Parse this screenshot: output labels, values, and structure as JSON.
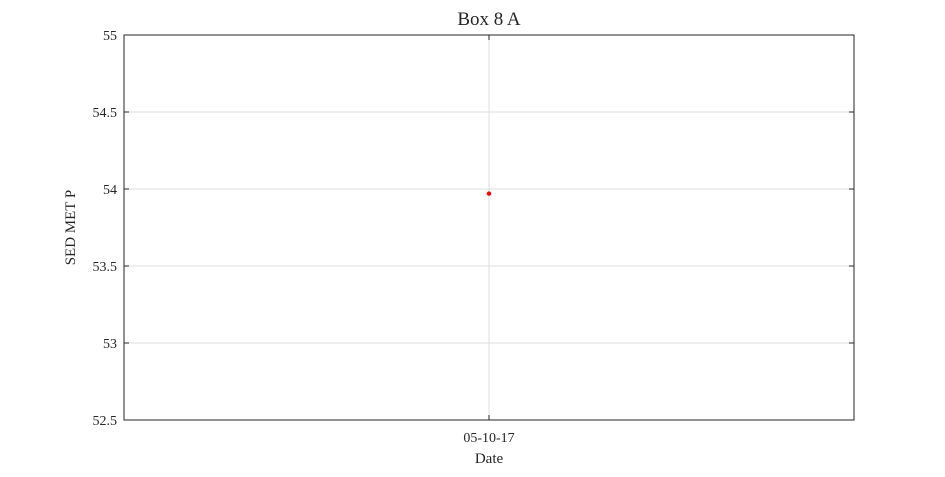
{
  "chart_data": {
    "type": "scatter",
    "title": "Box 8 A",
    "xlabel": "Date",
    "ylabel": "SED MET P",
    "ylim": [
      52.5,
      55
    ],
    "yticks": [
      52.5,
      53,
      53.5,
      54,
      54.5,
      55
    ],
    "ytick_labels": [
      "52.5",
      "53",
      "53.5",
      "54",
      "54.5",
      "55"
    ],
    "xticks": [
      "2017-05-10"
    ],
    "xtick_labels": [
      "05-10-17"
    ],
    "grid": true,
    "legend": "none",
    "series": [
      {
        "color": "#ff0000",
        "points": [
          {
            "x": "2017-05-10",
            "y": 53.97
          }
        ]
      }
    ]
  }
}
